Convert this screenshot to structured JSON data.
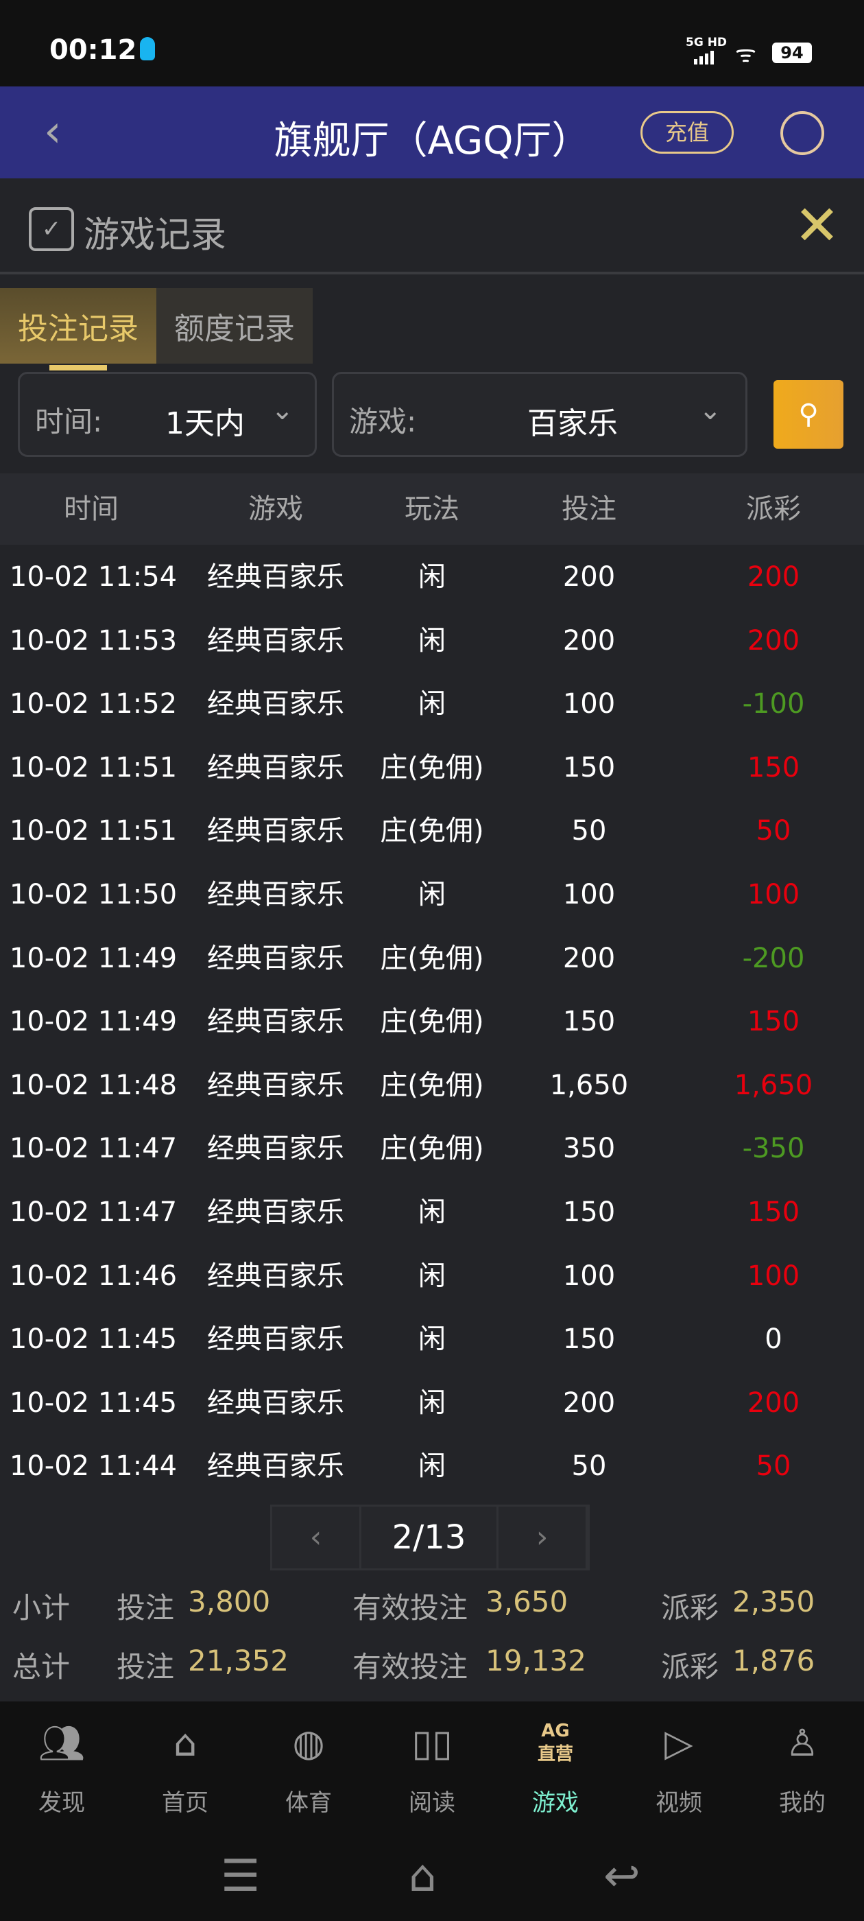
{
  "status": {
    "time": "00:12",
    "network": "5G HD",
    "battery": "94"
  },
  "header": {
    "title": "旗舰厅（AGQ厅）",
    "recharge": "充值"
  },
  "record": {
    "title": "游戏记录"
  },
  "tabs": [
    {
      "label": "投注记录",
      "active": true
    },
    {
      "label": "额度记录",
      "active": false
    }
  ],
  "filters": {
    "time_label": "时间:",
    "time_value": "1天内",
    "game_label": "游戏:",
    "game_value": "百家乐"
  },
  "table": {
    "headers": [
      "时间",
      "游戏",
      "玩法",
      "投注",
      "派彩"
    ],
    "rows": [
      [
        "10-02 11:54",
        "经典百家乐",
        "闲",
        "200",
        "200",
        "win"
      ],
      [
        "10-02 11:53",
        "经典百家乐",
        "闲",
        "200",
        "200",
        "win"
      ],
      [
        "10-02 11:52",
        "经典百家乐",
        "闲",
        "100",
        "-100",
        "lose"
      ],
      [
        "10-02 11:51",
        "经典百家乐",
        "庄(免佣)",
        "150",
        "150",
        "win"
      ],
      [
        "10-02 11:51",
        "经典百家乐",
        "庄(免佣)",
        "50",
        "50",
        "win"
      ],
      [
        "10-02 11:50",
        "经典百家乐",
        "闲",
        "100",
        "100",
        "win"
      ],
      [
        "10-02 11:49",
        "经典百家乐",
        "庄(免佣)",
        "200",
        "-200",
        "lose"
      ],
      [
        "10-02 11:49",
        "经典百家乐",
        "庄(免佣)",
        "150",
        "150",
        "win"
      ],
      [
        "10-02 11:48",
        "经典百家乐",
        "庄(免佣)",
        "1,650",
        "1,650",
        "win"
      ],
      [
        "10-02 11:47",
        "经典百家乐",
        "庄(免佣)",
        "350",
        "-350",
        "lose"
      ],
      [
        "10-02 11:47",
        "经典百家乐",
        "闲",
        "150",
        "150",
        "win"
      ],
      [
        "10-02 11:46",
        "经典百家乐",
        "闲",
        "100",
        "100",
        "win"
      ],
      [
        "10-02 11:45",
        "经典百家乐",
        "闲",
        "150",
        "0",
        "zero"
      ],
      [
        "10-02 11:45",
        "经典百家乐",
        "闲",
        "200",
        "200",
        "win"
      ],
      [
        "10-02 11:44",
        "经典百家乐",
        "闲",
        "50",
        "50",
        "win"
      ]
    ]
  },
  "pager": {
    "page": "2/13"
  },
  "summary": [
    {
      "label": "小计",
      "bet_label": "投注",
      "bet": "3,800",
      "valid_label": "有效投注",
      "valid": "3,650",
      "payout_label": "派彩",
      "payout": "2,350"
    },
    {
      "label": "总计",
      "bet_label": "投注",
      "bet": "21,352",
      "valid_label": "有效投注",
      "valid": "19,132",
      "payout_label": "派彩",
      "payout": "1,876"
    }
  ],
  "nav": [
    {
      "label": "发现",
      "icon": "users-icon"
    },
    {
      "label": "首页",
      "icon": "home-icon"
    },
    {
      "label": "体育",
      "icon": "basketball-icon"
    },
    {
      "label": "阅读",
      "icon": "book-icon"
    },
    {
      "label": "游戏",
      "icon": "ag-icon",
      "badge_top": "AG",
      "badge_bottom": "直营",
      "active": true
    },
    {
      "label": "视频",
      "icon": "video-icon"
    },
    {
      "label": "我的",
      "icon": "profile-icon"
    }
  ],
  "colors": {
    "win": "#e8000e",
    "lose": "#4d9a22",
    "accent": "#d8c27a",
    "header_bg": "#2e2f80"
  }
}
